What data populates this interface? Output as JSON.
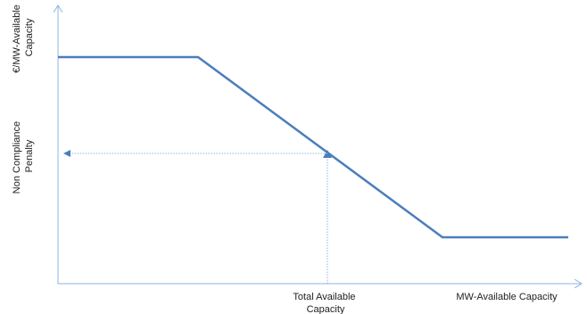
{
  "diagram": {
    "y_axis_label": [
      "€/MW-Available",
      "Capacity"
    ],
    "y_marker_label": [
      "Non Compliance",
      "Penalty"
    ],
    "x_axis_label": "MW-Available Capacity",
    "x_marker_label": [
      "Total Available",
      "Capacity"
    ]
  },
  "colors": {
    "curve": "#4a7ebb",
    "axis": "#8eb4e3",
    "dotted_guides": "#8eb4e3",
    "text": "#222222"
  }
}
